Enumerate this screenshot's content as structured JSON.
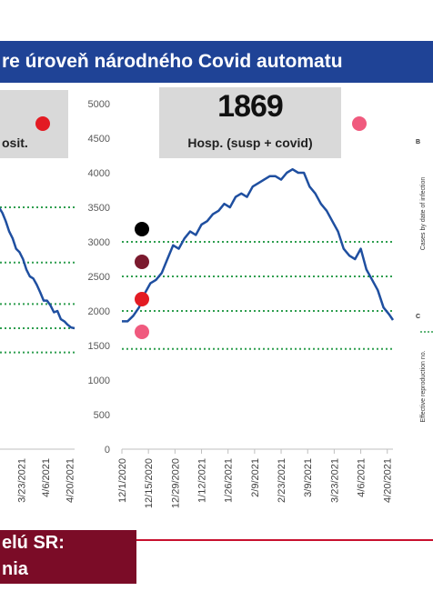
{
  "banner": {
    "title": "re úroveň národného Covid automatu"
  },
  "left_box": {
    "label": "osit.",
    "dot_color": "#e31b23"
  },
  "main_box": {
    "value": "1869",
    "label": "Hosp. (susp + covid)",
    "dot_color": "#f05a7e"
  },
  "right_panel": {
    "b_letter": "B",
    "c_letter": "C",
    "b_ylabel": "Cases by date of infection",
    "c_ylabel": "Effective reproduction no."
  },
  "legend_dots": [
    "#000000",
    "#7b1a2e",
    "#e31b23",
    "#f05a7e"
  ],
  "footer": {
    "line1": "elú SR:",
    "line2": "nia",
    "rule_color": "#c8102e"
  },
  "chart_data": [
    {
      "type": "line",
      "title": "",
      "xlabel": "",
      "ylabel": "",
      "ylim": [
        0,
        5000
      ],
      "yticks": [
        0,
        500,
        1000,
        1500,
        2000,
        2500,
        3000,
        3500,
        4000,
        4500,
        5000
      ],
      "xtick_labels": [
        "12/1/2020",
        "12/15/2020",
        "12/29/2020",
        "1/12/2021",
        "1/26/2021",
        "2/9/2021",
        "2/23/2021",
        "3/9/2021",
        "3/23/2021",
        "4/6/2021",
        "4/20/2021"
      ],
      "xrange": [
        "2020-12-01",
        "2021-04-23"
      ],
      "grid": false,
      "line_color": "#1f4fa0",
      "threshold_lines": [
        {
          "value": 3000,
          "color": "#2e9e4f",
          "style": "dotted"
        },
        {
          "value": 2500,
          "color": "#2e9e4f",
          "style": "dotted"
        },
        {
          "value": 2000,
          "color": "#2e9e4f",
          "style": "dotted"
        },
        {
          "value": 1450,
          "color": "#2e9e4f",
          "style": "dotted"
        }
      ],
      "series": [
        {
          "x": [
            "2020-12-01",
            "2020-12-04",
            "2020-12-07",
            "2020-12-10",
            "2020-12-13",
            "2020-12-16",
            "2020-12-19",
            "2020-12-22",
            "2020-12-25",
            "2020-12-28",
            "2020-12-31",
            "2021-01-03",
            "2021-01-06",
            "2021-01-09",
            "2021-01-12",
            "2021-01-15",
            "2021-01-18",
            "2021-01-21",
            "2021-01-24",
            "2021-01-27",
            "2021-01-30",
            "2021-02-02",
            "2021-02-05",
            "2021-02-08",
            "2021-02-11",
            "2021-02-14",
            "2021-02-17",
            "2021-02-20",
            "2021-02-23",
            "2021-02-26",
            "2021-03-01",
            "2021-03-04",
            "2021-03-07",
            "2021-03-10",
            "2021-03-13",
            "2021-03-16",
            "2021-03-19",
            "2021-03-22",
            "2021-03-25",
            "2021-03-28",
            "2021-03-31",
            "2021-04-03",
            "2021-04-06",
            "2021-04-09",
            "2021-04-12",
            "2021-04-15",
            "2021-04-18",
            "2021-04-21",
            "2021-04-23"
          ],
          "values": [
            1850,
            1850,
            1930,
            2050,
            2250,
            2400,
            2450,
            2550,
            2750,
            2950,
            2900,
            3050,
            3150,
            3100,
            3250,
            3300,
            3400,
            3450,
            3550,
            3500,
            3650,
            3700,
            3650,
            3800,
            3850,
            3900,
            3950,
            3950,
            3900,
            4000,
            4050,
            4000,
            4000,
            3800,
            3700,
            3550,
            3450,
            3300,
            3150,
            2900,
            2800,
            2750,
            2900,
            2600,
            2450,
            2300,
            2050,
            1950,
            1869
          ]
        }
      ]
    },
    {
      "type": "line",
      "title": "",
      "partial": true,
      "xtick_labels": [
        "3/23/2021",
        "4/6/2021",
        "4/20/2021"
      ],
      "threshold_line_values": [
        3500,
        2700,
        2100,
        1750,
        1400
      ],
      "series": [
        {
          "x": [
            "2021-03-08",
            "2021-03-10",
            "2021-03-12",
            "2021-03-14",
            "2021-03-16",
            "2021-03-18",
            "2021-03-20",
            "2021-03-22",
            "2021-03-24",
            "2021-03-26",
            "2021-03-28",
            "2021-03-30",
            "2021-04-01",
            "2021-04-03",
            "2021-04-05",
            "2021-04-07",
            "2021-04-09",
            "2021-04-11",
            "2021-04-13",
            "2021-04-15",
            "2021-04-17",
            "2021-04-19",
            "2021-04-21",
            "2021-04-23"
          ],
          "values": [
            3600,
            3500,
            3420,
            3300,
            3150,
            3050,
            2900,
            2850,
            2750,
            2600,
            2500,
            2470,
            2380,
            2270,
            2150,
            2150,
            2080,
            1980,
            2000,
            1880,
            1850,
            1800,
            1760,
            1750
          ]
        }
      ]
    }
  ]
}
